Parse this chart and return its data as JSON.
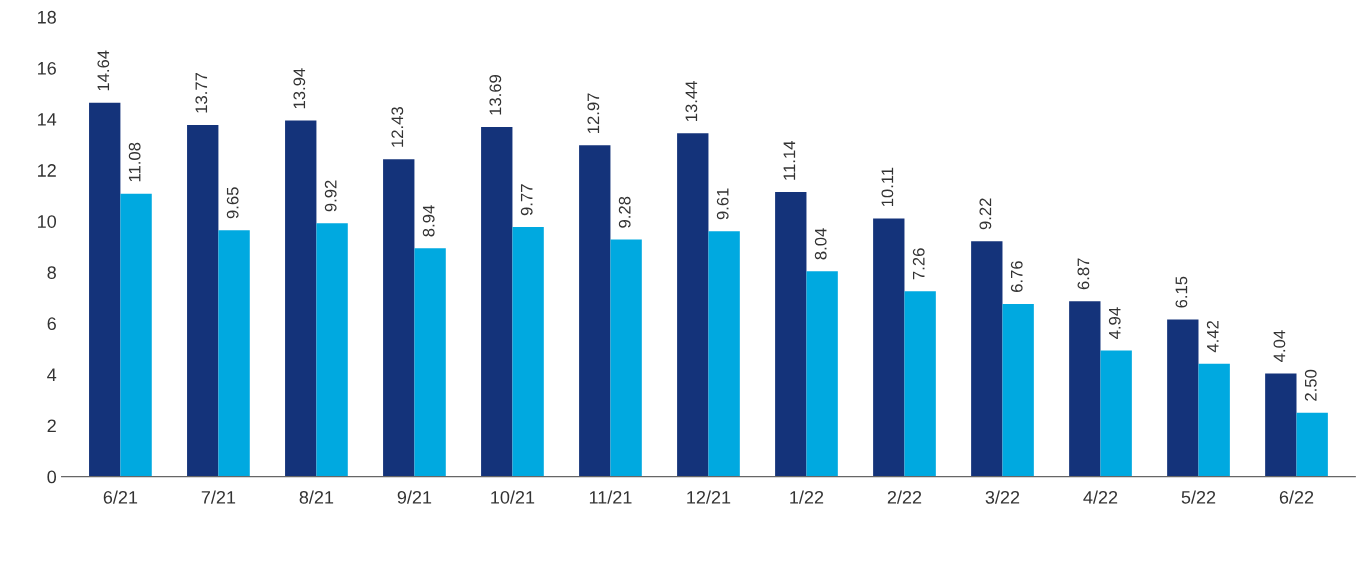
{
  "chart_data": {
    "type": "bar",
    "categories": [
      "6/21",
      "7/21",
      "8/21",
      "9/21",
      "10/21",
      "11/21",
      "12/21",
      "1/22",
      "2/22",
      "3/22",
      "4/22",
      "5/22",
      "6/22"
    ],
    "series": [
      {
        "color": "#14337a",
        "values": [
          14.64,
          13.77,
          13.94,
          12.43,
          13.69,
          12.97,
          13.44,
          11.14,
          10.11,
          9.22,
          6.87,
          6.15,
          4.04
        ],
        "value_labels": [
          "14.64",
          "13.77",
          "13.94",
          "12.43",
          "13.69",
          "12.97",
          "13.44",
          "11.14",
          "10.11",
          "9.22",
          "6.87",
          "6.15",
          "4.04"
        ]
      },
      {
        "color": "#00a9e0",
        "values": [
          11.08,
          9.65,
          9.92,
          8.94,
          9.77,
          9.28,
          9.61,
          8.04,
          7.26,
          6.76,
          4.94,
          4.42,
          2.5
        ],
        "value_labels": [
          "11.08",
          "9.65",
          "9.92",
          "8.94",
          "9.77",
          "9.28",
          "9.61",
          "8.04",
          "7.26",
          "6.76",
          "4.94",
          "4.42",
          "2.50"
        ]
      }
    ],
    "ylim": [
      0,
      18
    ],
    "yticks": [
      0,
      2,
      4,
      6,
      8,
      10,
      12,
      14,
      16,
      18
    ],
    "grid": false
  }
}
